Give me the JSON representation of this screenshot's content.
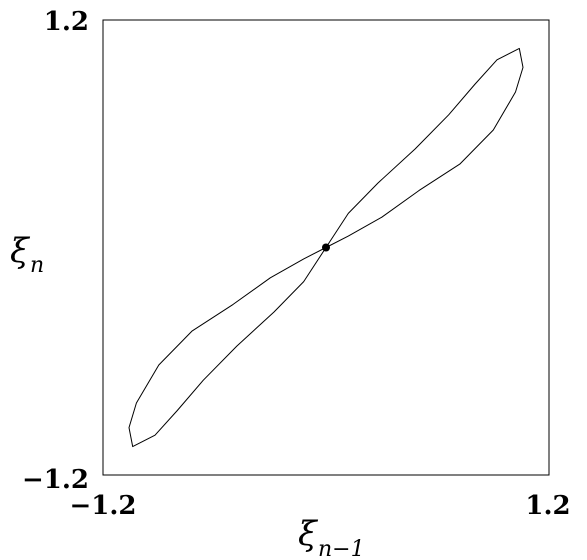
{
  "chart_data": {
    "type": "line",
    "title": "",
    "xlabel": {
      "base": "ξ",
      "subscript": "n−1"
    },
    "ylabel": {
      "base": "ξ",
      "subscript": "n"
    },
    "xlim": [
      -1.2,
      1.2
    ],
    "ylim": [
      -1.2,
      1.2
    ],
    "x_tick_labels": [
      "−1.2",
      "1.2"
    ],
    "y_tick_labels": [
      "−1.2",
      "1.2"
    ],
    "grid": false,
    "series": [
      {
        "style": "solid",
        "color": "#000000",
        "points": [
          [
            0.0,
            0.0
          ],
          [
            0.12,
            0.18
          ],
          [
            0.28,
            0.34
          ],
          [
            0.48,
            0.52
          ],
          [
            0.66,
            0.7
          ],
          [
            0.8,
            0.86
          ],
          [
            0.92,
            0.99
          ],
          [
            1.04,
            1.05
          ],
          [
            1.06,
            0.95
          ],
          [
            1.02,
            0.82
          ],
          [
            0.9,
            0.62
          ],
          [
            0.72,
            0.44
          ],
          [
            0.5,
            0.3
          ],
          [
            0.3,
            0.16
          ],
          [
            0.12,
            0.06
          ],
          [
            0.0,
            0.0
          ],
          [
            -0.12,
            -0.06
          ],
          [
            -0.3,
            -0.16
          ],
          [
            -0.5,
            -0.3
          ],
          [
            -0.72,
            -0.44
          ],
          [
            -0.9,
            -0.62
          ],
          [
            -1.02,
            -0.82
          ],
          [
            -1.06,
            -0.95
          ],
          [
            -1.04,
            -1.05
          ],
          [
            -0.92,
            -0.99
          ],
          [
            -0.8,
            -0.86
          ],
          [
            -0.66,
            -0.7
          ],
          [
            -0.48,
            -0.52
          ],
          [
            -0.28,
            -0.34
          ],
          [
            -0.12,
            -0.18
          ],
          [
            0.0,
            0.0
          ]
        ]
      }
    ],
    "center_point": [
      0.0,
      0.0
    ]
  }
}
